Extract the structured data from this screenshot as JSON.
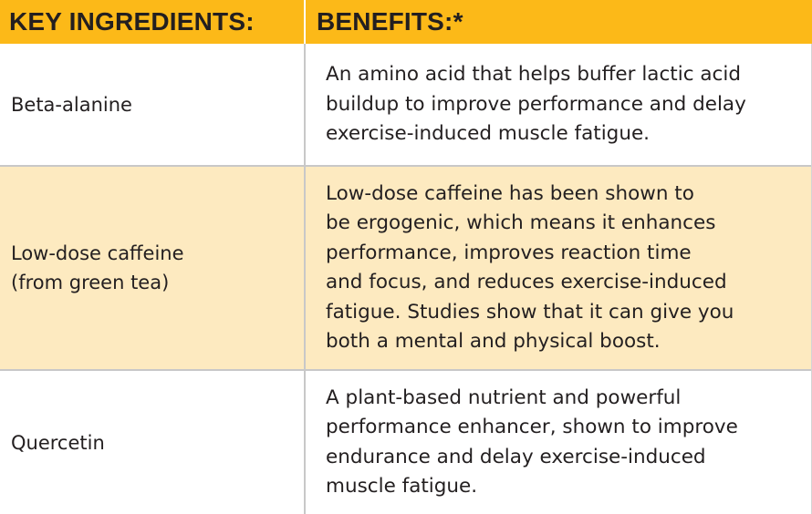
{
  "header": {
    "ingredients_label": "KEY INGREDIENTS:",
    "benefits_label": "BENEFITS:*"
  },
  "rows": [
    {
      "ingredient_lines": [
        "Beta-alanine"
      ],
      "benefit_lines": [
        "An amino acid that helps buffer lactic acid",
        "buildup to improve performance and delay",
        "exercise-induced muscle fatigue."
      ]
    },
    {
      "ingredient_lines": [
        "Low-dose caffeine",
        "(from green tea)"
      ],
      "benefit_lines": [
        "Low-dose caffeine has been shown to",
        "be ergogenic, which means it enhances",
        "performance, improves reaction time",
        "and focus, and reduces exercise-induced",
        "fatigue. Studies show that it can give you",
        "both a mental and physical boost."
      ]
    },
    {
      "ingredient_lines": [
        "Quercetin"
      ],
      "benefit_lines": [
        "A plant-based nutrient and powerful",
        "performance enhancer, shown to improve",
        "endurance and delay exercise-induced",
        "muscle fatigue."
      ]
    }
  ],
  "colors": {
    "header_bg": "#fcb918",
    "alt_row_bg": "#fdeac0",
    "text": "#231f20"
  }
}
